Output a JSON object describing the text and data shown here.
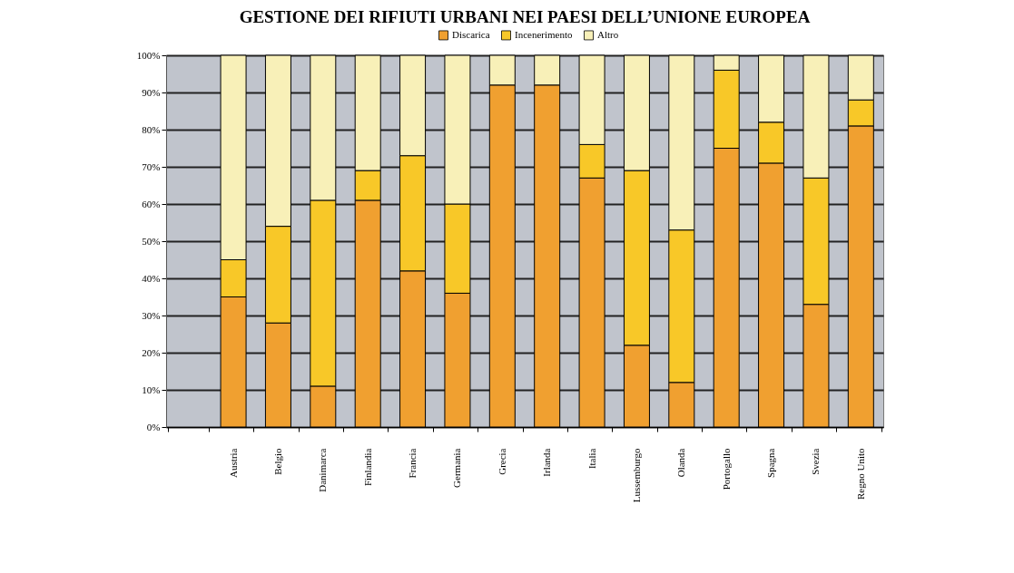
{
  "chart_data": {
    "type": "bar",
    "title": "GESTIONE DEI RIFIUTI URBANI  NEI PAESI DELL’UNIONE EUROPEA",
    "categories": [
      null,
      "Austria",
      "Belgio",
      "Danimarca",
      "Finlandia",
      "Francia",
      "Germania",
      "Grecia",
      "Irlanda",
      "Italia",
      "Lussemburgo",
      "Olanda",
      "Portogallo",
      "Spagna",
      "Svezia",
      "Regno Unito"
    ],
    "stacked": true,
    "series": [
      {
        "name": "Discarica",
        "color": "#f0a030",
        "values": [
          null,
          35,
          28,
          11,
          61,
          42,
          36,
          92,
          92,
          67,
          22,
          12,
          75,
          71,
          33,
          81
        ]
      },
      {
        "name": "Incenerimento",
        "color": "#f8c828",
        "values": [
          null,
          10,
          26,
          50,
          8,
          31,
          24,
          0,
          0,
          9,
          47,
          41,
          21,
          11,
          34,
          7
        ]
      },
      {
        "name": "Altro",
        "color": "#f8f0b8",
        "values": [
          null,
          55,
          46,
          39,
          31,
          27,
          40,
          8,
          8,
          24,
          31,
          47,
          4,
          18,
          33,
          12
        ]
      }
    ],
    "ylim": [
      0,
      100
    ],
    "yticks": [
      {
        "value": 0,
        "label": "0%"
      },
      {
        "value": 10,
        "label": "10%"
      },
      {
        "value": 20,
        "label": "20%"
      },
      {
        "value": 30,
        "label": "30%"
      },
      {
        "value": 40,
        "label": "40%"
      },
      {
        "value": 50,
        "label": "50%"
      },
      {
        "value": 60,
        "label": "60%"
      },
      {
        "value": 70,
        "label": "70%"
      },
      {
        "value": 80,
        "label": "80%"
      },
      {
        "value": 90,
        "label": "90%"
      },
      {
        "value": 100,
        "label": "100%"
      }
    ],
    "grid": "y",
    "legend": "top"
  }
}
